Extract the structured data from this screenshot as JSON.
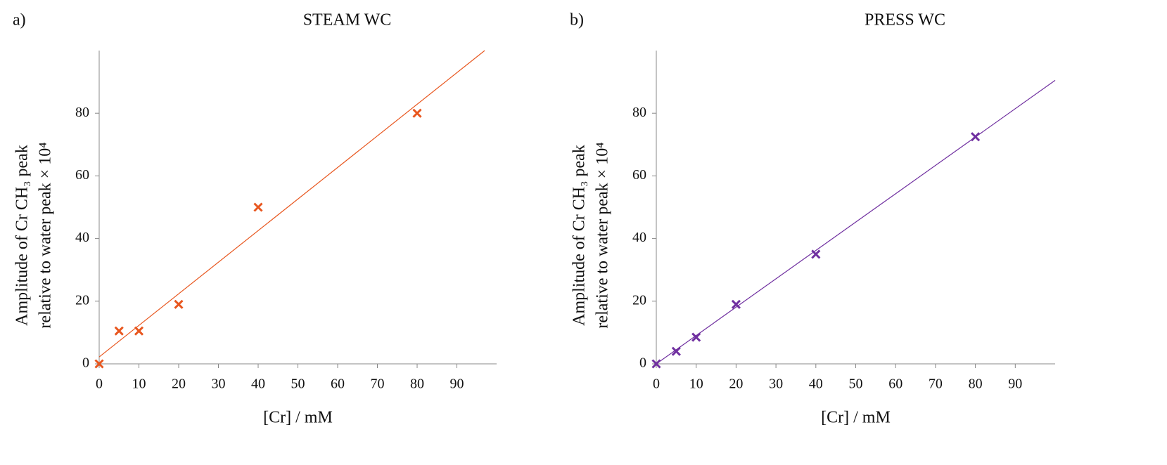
{
  "chart_data": [
    {
      "type": "scatter",
      "panel_label": "a)",
      "title": "STEAM WC",
      "xlabel": "[Cr] / mM",
      "ylabel": [
        "Amplitude of Cr CH₃ peak",
        "relative to water peak × 10⁴"
      ],
      "x": [
        0,
        5,
        10,
        20,
        40,
        80
      ],
      "values": [
        0,
        10.5,
        10.5,
        19,
        50,
        80
      ],
      "color": "#e8561e",
      "trendline": {
        "x": [
          0,
          97
        ],
        "y": [
          2.2,
          100
        ]
      },
      "xlim": [
        0,
        100
      ],
      "ylim": [
        0,
        100
      ],
      "xticks": [
        0,
        10,
        20,
        30,
        40,
        50,
        60,
        70,
        80,
        90
      ],
      "yticks": [
        0,
        20,
        40,
        60,
        80
      ]
    },
    {
      "type": "scatter",
      "panel_label": "b)",
      "title": "PRESS WC",
      "xlabel": "[Cr] / mM",
      "ylabel": [
        "Amplitude of Cr CH₃ peak",
        "relative to water peak × 10⁴"
      ],
      "x": [
        0,
        5,
        10,
        20,
        40,
        80
      ],
      "values": [
        0,
        4,
        8.5,
        19,
        35,
        72.5
      ],
      "color": "#7030a0",
      "trendline": {
        "x": [
          0,
          100
        ],
        "y": [
          0,
          90.5
        ]
      },
      "xlim": [
        0,
        100
      ],
      "ylim": [
        0,
        100
      ],
      "xticks": [
        0,
        10,
        20,
        30,
        40,
        50,
        60,
        70,
        80,
        90
      ],
      "yticks": [
        0,
        20,
        40,
        60,
        80
      ]
    }
  ]
}
